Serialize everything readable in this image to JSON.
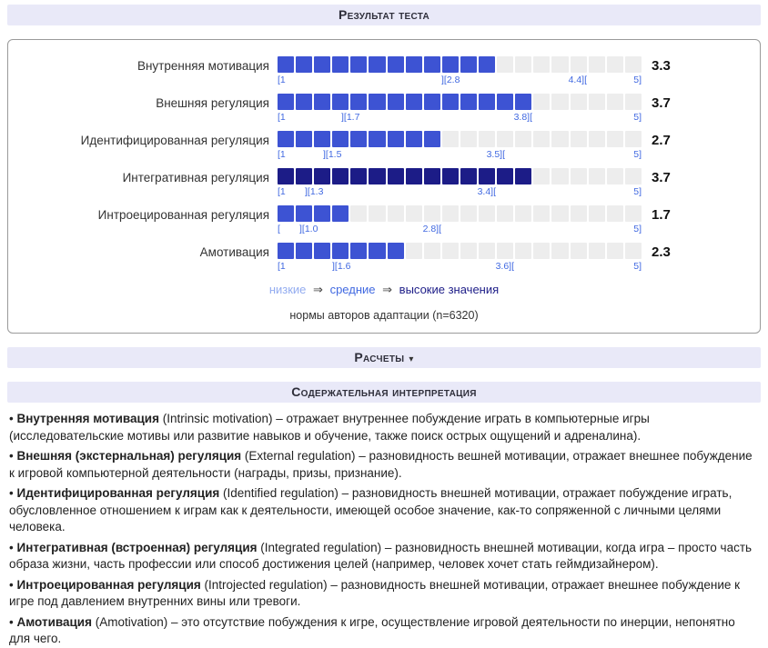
{
  "page": {
    "title": "Результат теста"
  },
  "colors": {
    "bar_medium": "#3d53d3",
    "bar_high": "#1c1c87",
    "bar_empty": "#ededed",
    "marker_text": "#4169e1",
    "legend_low": "#93acf0",
    "legend_medium": "#4169e1",
    "legend_high": "#1c1c87"
  },
  "results": {
    "rows": [
      {
        "label": "Внутренняя мотивация",
        "value": "3.3",
        "value_num": 3.3,
        "level": "medium",
        "markers": [
          {
            "text": "[1",
            "pos": 0,
            "align": "left"
          },
          {
            "text": "][2.8",
            "pos": 45,
            "align": "left"
          },
          {
            "text": "4.4][",
            "pos": 85,
            "align": "right"
          },
          {
            "text": "5]",
            "pos": 100,
            "align": "right"
          }
        ]
      },
      {
        "label": "Внешняя регуляция",
        "value": "3.7",
        "value_num": 3.7,
        "level": "medium",
        "markers": [
          {
            "text": "[1",
            "pos": 0,
            "align": "left"
          },
          {
            "text": "][1.7",
            "pos": 17.5,
            "align": "left"
          },
          {
            "text": "3.8][",
            "pos": 70,
            "align": "right"
          },
          {
            "text": "5]",
            "pos": 100,
            "align": "right"
          }
        ]
      },
      {
        "label": "Идентифицированная регуляция",
        "value": "2.7",
        "value_num": 2.7,
        "level": "medium",
        "markers": [
          {
            "text": "[1",
            "pos": 0,
            "align": "left"
          },
          {
            "text": "][1.5",
            "pos": 12.5,
            "align": "left"
          },
          {
            "text": "3.5][",
            "pos": 62.5,
            "align": "right"
          },
          {
            "text": "5]",
            "pos": 100,
            "align": "right"
          }
        ]
      },
      {
        "label": "Интегративная регуляция",
        "value": "3.7",
        "value_num": 3.7,
        "level": "high",
        "markers": [
          {
            "text": "[1",
            "pos": 0,
            "align": "left"
          },
          {
            "text": "][1.3",
            "pos": 7.5,
            "align": "left"
          },
          {
            "text": "3.4][",
            "pos": 60,
            "align": "right"
          },
          {
            "text": "5]",
            "pos": 100,
            "align": "right"
          }
        ]
      },
      {
        "label": "Интроецированная регуляция",
        "value": "1.7",
        "value_num": 1.7,
        "level": "medium",
        "markers": [
          {
            "text": "[",
            "pos": 0,
            "align": "left"
          },
          {
            "text": "][1.0",
            "pos": 6,
            "align": "left"
          },
          {
            "text": "2.8][",
            "pos": 45,
            "align": "right"
          },
          {
            "text": "5]",
            "pos": 100,
            "align": "right"
          }
        ]
      },
      {
        "label": "Амотивация",
        "value": "2.3",
        "value_num": 2.3,
        "level": "medium",
        "markers": [
          {
            "text": "[1",
            "pos": 0,
            "align": "left"
          },
          {
            "text": "][1.6",
            "pos": 15,
            "align": "left"
          },
          {
            "text": "3.6][",
            "pos": 65,
            "align": "right"
          },
          {
            "text": "5]",
            "pos": 100,
            "align": "right"
          }
        ]
      }
    ],
    "legend": {
      "low": "низкие",
      "arrow": "⇒",
      "medium": "средние",
      "high": "высокие значения"
    },
    "norms": "нормы авторов адаптации (n=6320)"
  },
  "calculations": {
    "label": "Расчеты",
    "caret": "▾"
  },
  "interpretation": {
    "title": "Содержательная интерпретация",
    "items": [
      {
        "bullet": "•",
        "term": "Внутренняя мотивация",
        "text": " (Intrinsic motivation) – отражает внутреннее побуждение играть в компьютерные игры (исследовательские мотивы или развитие навыков и обучение, также поиск острых ощущений и адреналина)."
      },
      {
        "bullet": "•",
        "term": "Внешняя (экстернальная) регуляция",
        "text": " (External regulation) – разновидность вешней мотивации, отражает внешнее побуждение к игровой компьютерной деятельности (награды, призы, признание)."
      },
      {
        "bullet": "•",
        "term": "Идентифицированная регуляция",
        "text": " (Identified regulation) – разновидность внешней мотивации, отражает побуждение играть, обусловленное отношением к играм как к деятельности, имеющей особое значение, как-то сопряженной с личными целями человека."
      },
      {
        "bullet": "•",
        "term": "Интегративная (встроенная) регуляция",
        "text": " (Integrated regulation) – разновидность внешней мотивации, когда игра – просто часть образа жизни, часть профессии или способ достижения целей (например, человек хочет стать геймдизайнером)."
      },
      {
        "bullet": "•",
        "term": "Интроецированная регуляция",
        "text": " (Introjected regulation) – разновидность внешней мотивации, отражает внешнее побуждение к игре под давлением внутренних вины или тревоги."
      },
      {
        "bullet": "•",
        "term": "Амотивация",
        "text": " (Amotivation) – это отсутствие побуждения к игре, осуществление игровой деятельности по инерции, непонятно для чего."
      }
    ]
  },
  "chart_data": {
    "type": "bar",
    "orientation": "horizontal",
    "categories": [
      "Внутренняя мотивация",
      "Внешняя регуляция",
      "Идентифицированная регуляция",
      "Интегративная регуляция",
      "Интроецированная регуляция",
      "Амотивация"
    ],
    "values": [
      3.3,
      3.7,
      2.7,
      3.7,
      1.7,
      2.3
    ],
    "xlim": [
      1,
      5
    ],
    "segments_per_bar": 20,
    "norm_ranges": [
      [
        2.8,
        4.4
      ],
      [
        1.7,
        3.8
      ],
      [
        1.5,
        3.5
      ],
      [
        1.3,
        3.4
      ],
      [
        1.0,
        2.8
      ],
      [
        1.6,
        3.6
      ]
    ],
    "levels": [
      "medium",
      "medium",
      "medium",
      "high",
      "medium",
      "medium"
    ],
    "legend": [
      "низкие",
      "средние",
      "высокие значения"
    ],
    "note": "нормы авторов адаптации (n=6320)"
  }
}
